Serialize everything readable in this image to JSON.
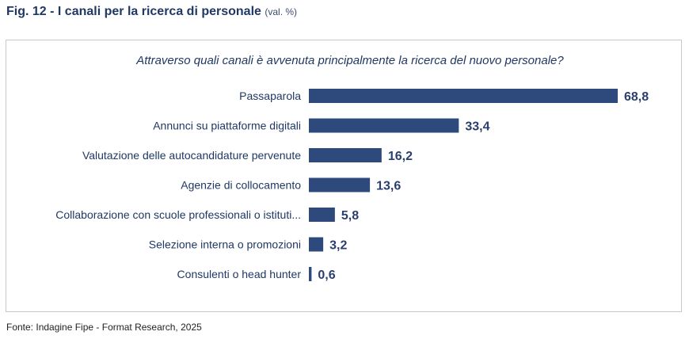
{
  "figure": {
    "title": "Fig. 12 - I canali per la ricerca di personale",
    "unit": "(val. %)"
  },
  "source": "Fonte: Indagine Fipe - Format Research, 2025",
  "colors": {
    "bar": "#2e4a7d",
    "title": "#1f3864"
  },
  "chart_data": {
    "type": "bar",
    "orientation": "horizontal",
    "title": "Attraverso quali canali è avvenuta principalmente la ricerca del nuovo personale?",
    "xlabel": "",
    "ylabel": "",
    "categories": [
      "Passaparola",
      "Annunci su piattaforme digitali",
      "Valutazione delle autocandidature pervenute",
      "Agenzie di collocamento",
      "Collaborazione con scuole professionali o istituti...",
      "Selezione interna o promozioni",
      "Consulenti o head hunter"
    ],
    "values": [
      68.8,
      33.4,
      16.2,
      13.6,
      5.8,
      3.2,
      0.6
    ],
    "value_labels": [
      "68,8",
      "33,4",
      "16,2",
      "13,6",
      "5,8",
      "3,2",
      "0,6"
    ],
    "xlim": [
      0,
      68.8
    ],
    "grid": false,
    "legend": "none"
  }
}
